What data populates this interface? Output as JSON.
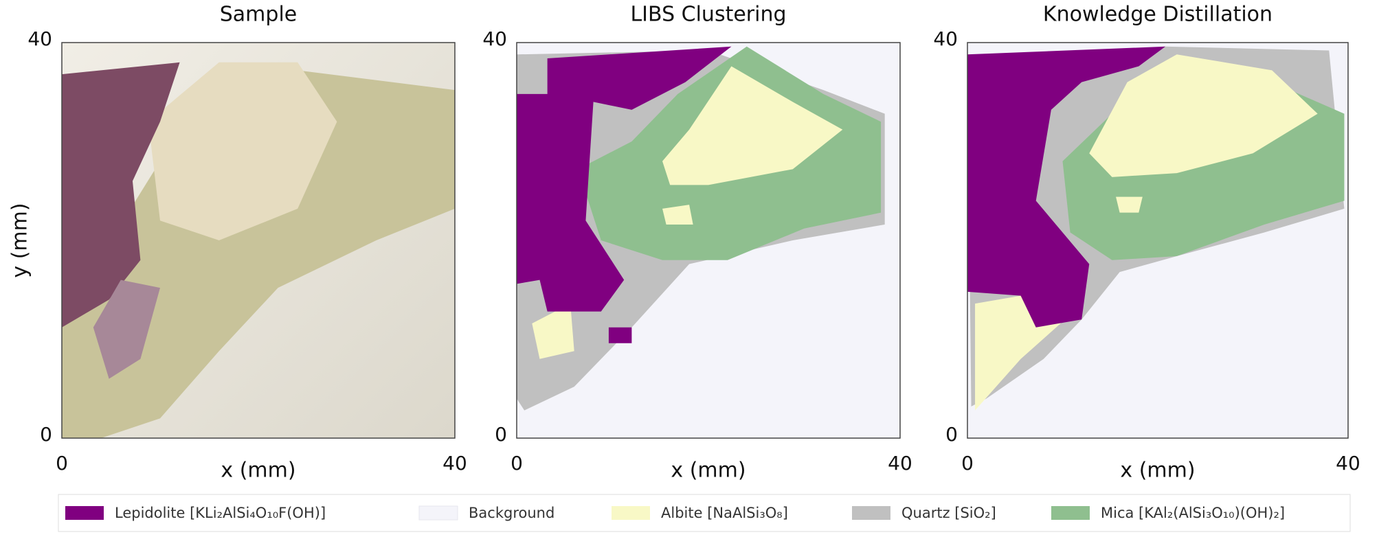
{
  "chart_data": [
    {
      "type": "image",
      "title": "Sample",
      "x_label": "x (mm)",
      "y_label": "y (mm)",
      "xlim": [
        0,
        40
      ],
      "ylim": [
        0,
        40
      ],
      "xticks": [
        0,
        40
      ],
      "yticks": [
        0,
        40
      ]
    },
    {
      "type": "map",
      "title": "LIBS Clustering",
      "x_label": "x (mm)",
      "xlim": [
        0,
        40
      ],
      "ylim": [
        0,
        40
      ],
      "xticks": [
        0,
        40
      ],
      "yticks": [
        0,
        40
      ]
    },
    {
      "type": "map",
      "title": "Knowledge Distillation",
      "x_label": "x (mm)",
      "xlim": [
        0,
        40
      ],
      "ylim": [
        0,
        40
      ],
      "xticks": [
        0,
        40
      ],
      "yticks": [
        0,
        40
      ]
    }
  ],
  "legend": {
    "entries": [
      {
        "name": "Lepidolite [KLi₂AlSi₄O₁₀F(OH)]",
        "color": "#800080"
      },
      {
        "name": "Background",
        "color": "#f4f4fa"
      },
      {
        "name": "Albite [NaAlSi₃O₈]",
        "color": "#f8f8c6"
      },
      {
        "name": "Quartz [SiO₂]",
        "color": "#c0c0c0"
      },
      {
        "name": "Mica [KAl₂(AlSi₃O₁₀)(OH)₂]",
        "color": "#8fbf8f"
      }
    ]
  }
}
